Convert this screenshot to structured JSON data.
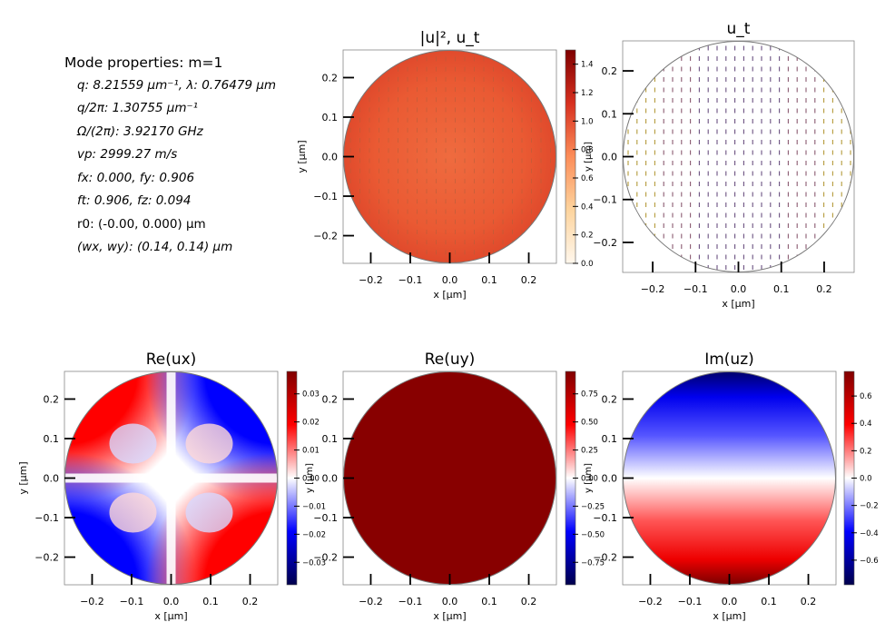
{
  "info": {
    "heading": "Mode properties: m=1",
    "lines": [
      "q: 8.21559 μm⁻¹, λ: 0.76479 μm",
      "q/2π: 1.30755 μm⁻¹",
      "Ω/(2π): 3.92170 GHz",
      "vp: 2999.27 m/s",
      "fx: 0.000, fy: 0.906",
      "ft: 0.906, fz: 0.094",
      "r0: (-0.00, 0.000) μm",
      "(wx, wy): (0.14, 0.14) μm"
    ]
  },
  "chart_data": [
    {
      "type": "heatmap",
      "title": "|u|², u_t",
      "field": "intensity",
      "xlabel": "x [μm]",
      "ylabel": "y [μm]",
      "xlim": [
        -0.27,
        0.27
      ],
      "ylim": [
        -0.27,
        0.27
      ],
      "xticks": [
        "−0.2",
        "−0.1",
        "0.0",
        "0.1",
        "0.2"
      ],
      "xtick_values": [
        -0.2,
        -0.1,
        0,
        0.1,
        0.2
      ],
      "yticks": [
        "−0.2",
        "−0.1",
        "0.0",
        "0.1",
        "0.2"
      ],
      "ytick_values": [
        -0.2,
        -0.1,
        0,
        0.1,
        0.2
      ],
      "colorbar": {
        "min": 0,
        "max": 1.5,
        "ticks": [
          "0.0",
          "0.2",
          "0.4",
          "0.6",
          "0.8",
          "1.0",
          "1.2",
          "1.4"
        ],
        "tick_values": [
          0,
          0.2,
          0.4,
          0.6,
          0.8,
          1.0,
          1.2,
          1.4
        ],
        "ylabel": "y [μm]",
        "colormap": "OrRd"
      },
      "arrows": true
    },
    {
      "type": "quiver",
      "title": "u_t",
      "field": "vectors",
      "xlabel": "x [μm]",
      "ylabel": "",
      "xlim": [
        -0.27,
        0.27
      ],
      "ylim": [
        -0.27,
        0.27
      ],
      "xticks": [
        "−0.2",
        "−0.1",
        "0.0",
        "0.1",
        "0.2"
      ],
      "xtick_values": [
        -0.2,
        -0.1,
        0,
        0.1,
        0.2
      ],
      "yticks": [
        "−0.2",
        "−0.1",
        "0.0",
        "0.1",
        "0.2"
      ],
      "ytick_values": [
        -0.2,
        -0.1,
        0,
        0.1,
        0.2
      ]
    },
    {
      "type": "heatmap",
      "title": "Re(ux)",
      "field": "quadrupole",
      "xlabel": "x [μm]",
      "ylabel": "y [μm]",
      "xlim": [
        -0.27,
        0.27
      ],
      "ylim": [
        -0.27,
        0.27
      ],
      "xticks": [
        "−0.2",
        "−0.1",
        "0.0",
        "0.1",
        "0.2"
      ],
      "xtick_values": [
        -0.2,
        -0.1,
        0,
        0.1,
        0.2
      ],
      "yticks": [
        "−0.2",
        "−0.1",
        "0.0",
        "0.1",
        "0.2"
      ],
      "ytick_values": [
        -0.2,
        -0.1,
        0,
        0.1,
        0.2
      ],
      "colorbar": {
        "min": -0.038,
        "max": 0.038,
        "ticks": [
          "−0.03",
          "−0.02",
          "−0.01",
          "0.00",
          "0.01",
          "0.02",
          "0.03"
        ],
        "tick_values": [
          -0.03,
          -0.02,
          -0.01,
          0,
          0.01,
          0.02,
          0.03
        ],
        "ylabel": "y [μm]",
        "colormap": "seismic"
      }
    },
    {
      "type": "heatmap",
      "title": "Re(uy)",
      "field": "uniform",
      "xlabel": "x [μm]",
      "ylabel": "",
      "xlim": [
        -0.27,
        0.27
      ],
      "ylim": [
        -0.27,
        0.27
      ],
      "xticks": [
        "−0.2",
        "−0.1",
        "0.0",
        "0.1",
        "0.2"
      ],
      "xtick_values": [
        -0.2,
        -0.1,
        0,
        0.1,
        0.2
      ],
      "yticks": [
        "−0.2",
        "−0.1",
        "0.0",
        "0.1",
        "0.2"
      ],
      "ytick_values": [
        -0.2,
        -0.1,
        0,
        0.1,
        0.2
      ],
      "colorbar": {
        "min": -0.95,
        "max": 0.95,
        "ticks": [
          "−0.75",
          "−0.50",
          "−0.25",
          "0.00",
          "0.25",
          "0.50",
          "0.75"
        ],
        "tick_values": [
          -0.75,
          -0.5,
          -0.25,
          0,
          0.25,
          0.5,
          0.75
        ],
        "ylabel": "y [μm]",
        "colormap": "seismic"
      }
    },
    {
      "type": "heatmap",
      "title": "Im(uz)",
      "field": "dipole-y",
      "xlabel": "x [μm]",
      "ylabel": "",
      "xlim": [
        -0.27,
        0.27
      ],
      "ylim": [
        -0.27,
        0.27
      ],
      "xticks": [
        "−0.2",
        "−0.1",
        "0.0",
        "0.1",
        "0.2"
      ],
      "xtick_values": [
        -0.2,
        -0.1,
        0,
        0.1,
        0.2
      ],
      "yticks": [
        "−0.2",
        "−0.1",
        "0.0",
        "0.1",
        "0.2"
      ],
      "ytick_values": [
        -0.2,
        -0.1,
        0,
        0.1,
        0.2
      ],
      "colorbar": {
        "min": -0.78,
        "max": 0.78,
        "ticks": [
          "−0.6",
          "−0.4",
          "−0.2",
          "0.0",
          "0.2",
          "0.4",
          "0.6"
        ],
        "tick_values": [
          -0.6,
          -0.4,
          -0.2,
          0,
          0.2,
          0.4,
          0.6
        ],
        "ylabel": "",
        "colormap": "seismic"
      }
    }
  ]
}
